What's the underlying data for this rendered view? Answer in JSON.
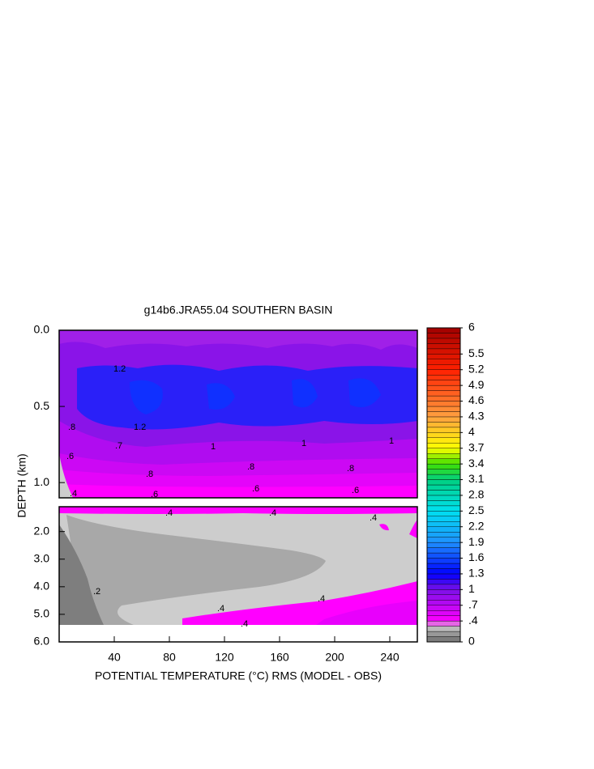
{
  "chart_data": {
    "type": "contour",
    "title": "g14b6.JRA55.04 SOUTHERN BASIN",
    "x_label": "POTENTIAL TEMPERATURE (°C) RMS (MODEL - OBS)",
    "y_label": "DEPTH (km)",
    "xlim": [
      0,
      260
    ],
    "xticks": [
      40,
      80,
      120,
      160,
      200,
      240
    ],
    "panels": [
      {
        "ylim": [
          0,
          1.1
        ],
        "yticks": [
          {
            "value": 0,
            "label": "0.0"
          },
          {
            "value": 0.5,
            "label": "0.5"
          },
          {
            "value": 1,
            "label": "1.0"
          }
        ]
      },
      {
        "ylim": [
          1.1,
          6
        ],
        "yticks": [
          {
            "value": 2,
            "label": "2.0"
          },
          {
            "value": 3,
            "label": "3.0"
          },
          {
            "value": 4,
            "label": "4.0"
          },
          {
            "value": 5,
            "label": "5.0"
          },
          {
            "value": 6,
            "label": "6.0"
          }
        ]
      }
    ],
    "colorbar": {
      "lim": [
        0,
        6
      ],
      "ticks": [
        6,
        5.5,
        5.2,
        4.9,
        4.6,
        4.3,
        4,
        3.7,
        3.4,
        3.1,
        2.8,
        2.5,
        2.2,
        1.9,
        1.6,
        1.3,
        1,
        {
          "value": 0.7,
          "label": ".7"
        },
        {
          "value": 0.4,
          "label": ".4"
        },
        0
      ],
      "colors": [
        {
          "value": 0,
          "color": "#6e6e6e"
        },
        {
          "value": 0.2,
          "color": "#a6a6a6"
        },
        {
          "value": 0.3,
          "color": "#cdcdcd"
        },
        {
          "value": 0.4,
          "color": "#ff00ff"
        },
        {
          "value": 1,
          "color": "#7a10e8"
        },
        {
          "value": 1.3,
          "color": "#0000ff"
        },
        {
          "value": 1.9,
          "color": "#1e90ff"
        },
        {
          "value": 2.5,
          "color": "#00e0f0"
        },
        {
          "value": 3.1,
          "color": "#00d080"
        },
        {
          "value": 3.4,
          "color": "#40e000"
        },
        {
          "value": 3.7,
          "color": "#ffff00"
        },
        {
          "value": 4.3,
          "color": "#ffa040"
        },
        {
          "value": 5.2,
          "color": "#ff2000"
        },
        {
          "value": 6,
          "color": "#a00000"
        }
      ]
    },
    "contour_labels": [
      ".4",
      ".6",
      ".7",
      ".8",
      "1",
      "1.2",
      ".2"
    ]
  }
}
